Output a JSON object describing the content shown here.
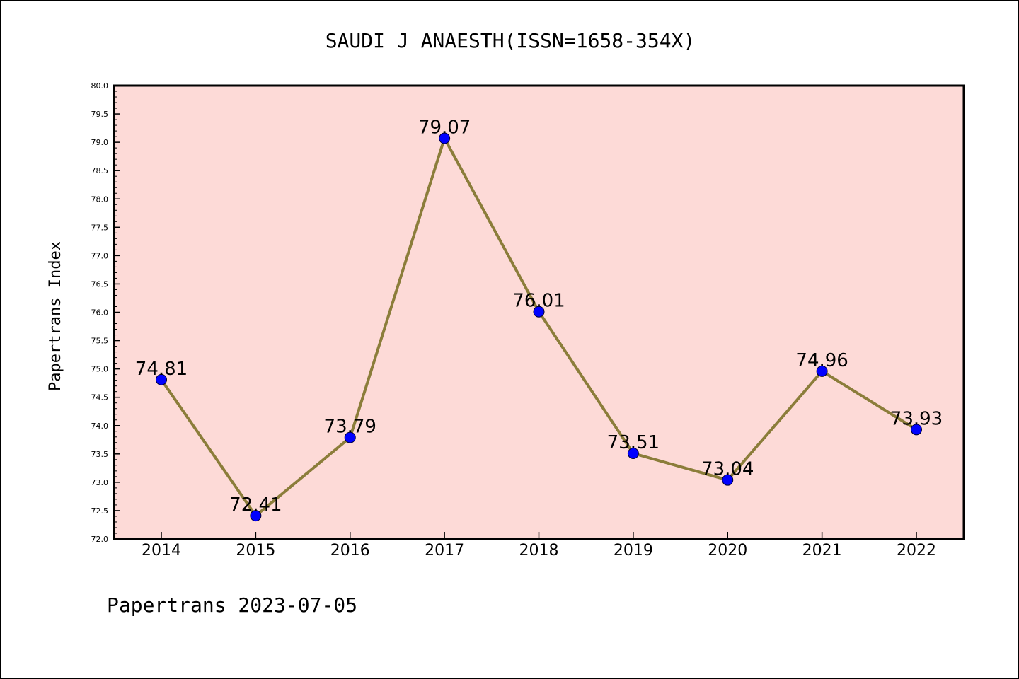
{
  "chart_data": {
    "type": "line",
    "title": "SAUDI J ANAESTH(ISSN=1658-354X)",
    "ylabel": "Papertrans Index",
    "xlabel": "",
    "footer": "Papertrans 2023-07-05",
    "x": [
      "2014",
      "2015",
      "2016",
      "2017",
      "2018",
      "2019",
      "2020",
      "2021",
      "2022"
    ],
    "values": [
      74.81,
      72.41,
      73.79,
      79.07,
      76.01,
      73.51,
      73.04,
      74.96,
      73.93
    ],
    "data_labels": [
      "74.81",
      "72.41",
      "73.79",
      "79.07",
      "76.01",
      "73.51",
      "73.04",
      "74.96",
      "73.93"
    ],
    "ylim": [
      72.0,
      80.0
    ],
    "yticks": [
      "72.0",
      "72.5",
      "73.0",
      "73.5",
      "74.0",
      "74.5",
      "75.0",
      "75.5",
      "76.0",
      "76.5",
      "77.0",
      "77.5",
      "78.0",
      "78.5",
      "79.0",
      "79.5",
      "80.0"
    ],
    "grid": false,
    "legend": "none",
    "colors": {
      "plot_background": "#fddad7",
      "line": "#8b7d3a",
      "marker": "#0000ff",
      "axes": "#000000"
    }
  }
}
